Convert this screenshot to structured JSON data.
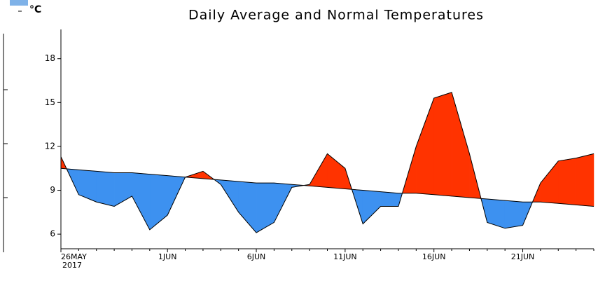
{
  "chart_data": {
    "type": "area-difference",
    "title": "Daily Average and Normal Temperatures",
    "y_unit": "°C",
    "categories": [
      "26MAY",
      null,
      null,
      null,
      null,
      null,
      "1JUN",
      null,
      null,
      null,
      null,
      "6JUN",
      null,
      null,
      null,
      null,
      "11JUN",
      null,
      null,
      null,
      null,
      "16JUN",
      null,
      null,
      null,
      null,
      "21JUN",
      null,
      null,
      null,
      null
    ],
    "year_label": "2017",
    "series": [
      {
        "color": "#000000",
        "values": [
          11.3,
          8.7,
          8.2,
          7.9,
          8.6,
          6.3,
          7.3,
          9.9,
          10.3,
          9.4,
          7.5,
          6.1,
          6.8,
          9.2,
          9.4,
          11.5,
          10.5,
          6.7,
          7.9,
          7.9,
          12.0,
          15.3,
          15.7,
          11.5,
          6.8,
          6.4,
          6.6,
          9.5,
          11.0,
          11.2,
          11.5
        ]
      },
      {
        "color": "#000000",
        "values": [
          10.5,
          10.4,
          10.3,
          10.2,
          10.2,
          10.1,
          10.0,
          9.9,
          9.8,
          9.7,
          9.6,
          9.5,
          9.5,
          9.4,
          9.3,
          9.2,
          9.1,
          9.0,
          8.9,
          8.8,
          8.8,
          8.7,
          8.6,
          8.5,
          8.4,
          8.3,
          8.2,
          8.2,
          8.1,
          8.0,
          7.9
        ]
      }
    ],
    "above_color": "#ff3300",
    "below_color": "#3d91f0",
    "ylim": [
      5,
      20
    ],
    "yticks": [
      6,
      9,
      12,
      15,
      18
    ]
  }
}
